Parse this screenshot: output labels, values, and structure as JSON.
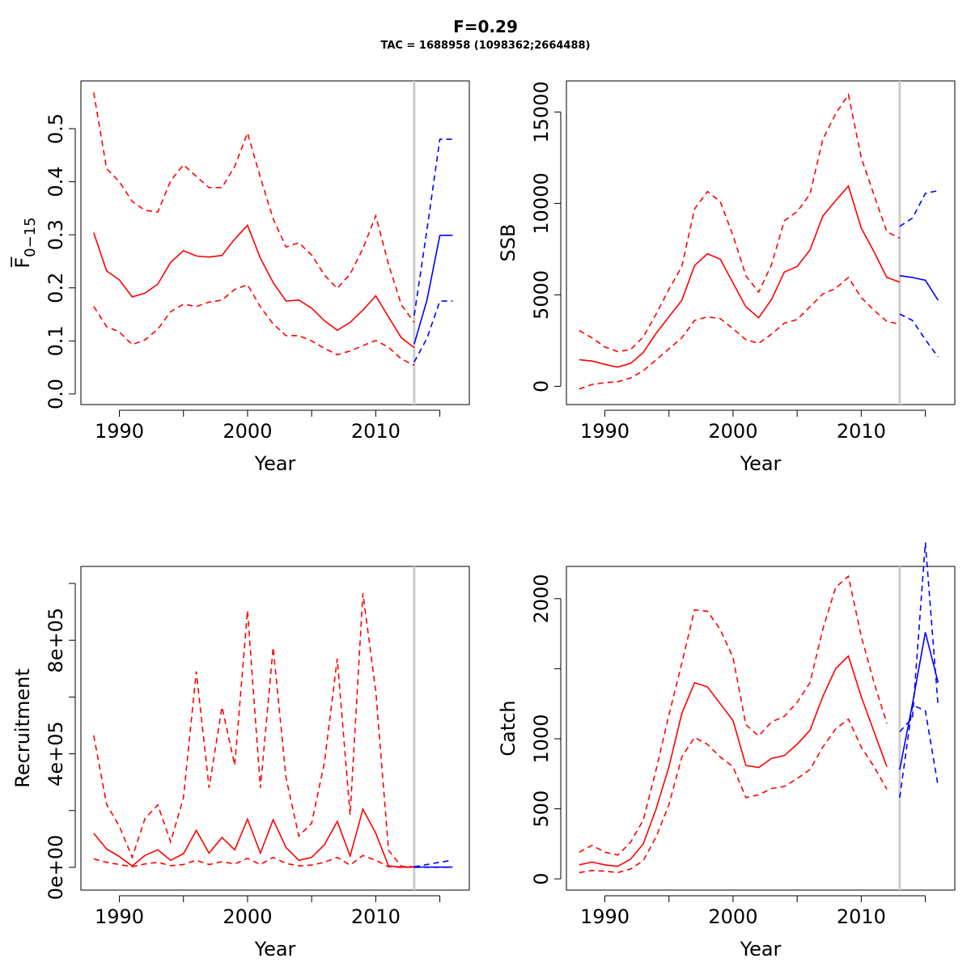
{
  "figure": {
    "title": "F=0.29",
    "subtitle": "TAC = 1688958 (1098362;2664488)"
  },
  "colors": {
    "history": "#ff0000",
    "forecast": "#0000ff",
    "divider": "#cccccc"
  },
  "chart_data": [
    {
      "type": "line",
      "name": "fbar",
      "xlabel": "Year",
      "ylabel": "F̅",
      "ylabel_sub": "0−15",
      "xlim": [
        1987,
        2017.3
      ],
      "ylim": [
        -0.02,
        0.59
      ],
      "xticks": [
        1990,
        1995,
        2000,
        2005,
        2010,
        2015
      ],
      "xtick_labels": [
        "1990",
        "",
        "2000",
        "",
        "2010",
        ""
      ],
      "yticks": [
        0,
        0.1,
        0.2,
        0.3,
        0.4,
        0.5
      ],
      "ytick_labels": [
        "0.0",
        "0.1",
        "0.2",
        "0.3",
        "0.4",
        "0.5"
      ],
      "divider_x": 2013,
      "series": [
        {
          "style": "solid",
          "color": "red",
          "x": [
            1988,
            1989,
            1990,
            1991,
            1992,
            1993,
            1994,
            1995,
            1996,
            1997,
            1998,
            1999,
            2000,
            2001,
            2002,
            2003,
            2004,
            2005,
            2006,
            2007,
            2008,
            2009,
            2010,
            2011,
            2012,
            2013
          ],
          "y": [
            0.304,
            0.232,
            0.215,
            0.183,
            0.19,
            0.207,
            0.248,
            0.27,
            0.26,
            0.258,
            0.261,
            0.292,
            0.318,
            0.256,
            0.21,
            0.175,
            0.177,
            0.162,
            0.138,
            0.12,
            0.135,
            0.158,
            0.185,
            0.145,
            0.106,
            0.087
          ]
        },
        {
          "style": "dashed",
          "color": "red",
          "x": [
            1988,
            1989,
            1990,
            1991,
            1992,
            1993,
            1994,
            1995,
            1996,
            1997,
            1998,
            1999,
            2000,
            2001,
            2002,
            2003,
            2004,
            2005,
            2006,
            2007,
            2008,
            2009,
            2010,
            2011,
            2012,
            2013
          ],
          "y": [
            0.568,
            0.425,
            0.4,
            0.363,
            0.346,
            0.343,
            0.402,
            0.432,
            0.41,
            0.389,
            0.389,
            0.429,
            0.492,
            0.408,
            0.33,
            0.277,
            0.285,
            0.262,
            0.224,
            0.199,
            0.226,
            0.274,
            0.336,
            0.244,
            0.168,
            0.135
          ]
        },
        {
          "style": "dashed",
          "color": "red",
          "x": [
            1988,
            1989,
            1990,
            1991,
            1992,
            1993,
            1994,
            1995,
            1996,
            1997,
            1998,
            1999,
            2000,
            2001,
            2002,
            2003,
            2004,
            2005,
            2006,
            2007,
            2008,
            2009,
            2010,
            2011,
            2012,
            2013
          ],
          "y": [
            0.165,
            0.127,
            0.117,
            0.093,
            0.102,
            0.122,
            0.155,
            0.169,
            0.165,
            0.173,
            0.177,
            0.197,
            0.206,
            0.164,
            0.132,
            0.11,
            0.11,
            0.1,
            0.086,
            0.074,
            0.081,
            0.091,
            0.101,
            0.088,
            0.066,
            0.054
          ]
        },
        {
          "style": "solid",
          "color": "blue",
          "x": [
            2013,
            2014,
            2015,
            2016
          ],
          "y": [
            0.094,
            0.177,
            0.299,
            0.299
          ]
        },
        {
          "style": "dashed",
          "color": "blue",
          "x": [
            2013,
            2014,
            2015,
            2016
          ],
          "y": [
            0.148,
            0.31,
            0.48,
            0.48
          ]
        },
        {
          "style": "dashed",
          "color": "blue",
          "x": [
            2013,
            2014,
            2015,
            2016
          ],
          "y": [
            0.06,
            0.105,
            0.175,
            0.175
          ]
        }
      ]
    },
    {
      "type": "line",
      "name": "ssb",
      "xlabel": "Year",
      "ylabel": "SSB",
      "xlim": [
        1987,
        2017.3
      ],
      "ylim": [
        -1000,
        16700
      ],
      "xticks": [
        1990,
        1995,
        2000,
        2005,
        2010,
        2015
      ],
      "xtick_labels": [
        "1990",
        "",
        "2000",
        "",
        "2010",
        ""
      ],
      "yticks": [
        0,
        5000,
        10000,
        15000
      ],
      "ytick_labels": [
        "0",
        "5000",
        "10000",
        "15000"
      ],
      "divider_x": 2013,
      "series": [
        {
          "style": "solid",
          "color": "red",
          "x": [
            1988,
            1989,
            1990,
            1991,
            1992,
            1993,
            1994,
            1995,
            1996,
            1997,
            1998,
            1999,
            2000,
            2001,
            2002,
            2003,
            2004,
            2005,
            2006,
            2007,
            2008,
            2009,
            2010,
            2011,
            2012,
            2013
          ],
          "y": [
            1450,
            1380,
            1200,
            1050,
            1250,
            1850,
            2900,
            3800,
            4700,
            6600,
            7250,
            6950,
            5650,
            4350,
            3750,
            4750,
            6250,
            6550,
            7450,
            9300,
            10150,
            10950,
            8650,
            7350,
            5950,
            5700
          ]
        },
        {
          "style": "dashed",
          "color": "red",
          "x": [
            1988,
            1989,
            1990,
            1991,
            1992,
            1993,
            1994,
            1995,
            1996,
            1997,
            1998,
            1999,
            2000,
            2001,
            2002,
            2003,
            2004,
            2005,
            2006,
            2007,
            2008,
            2009,
            2010,
            2011,
            2012,
            2013
          ],
          "y": [
            3050,
            2650,
            2150,
            1900,
            2000,
            2700,
            3950,
            5300,
            6550,
            9700,
            10650,
            10100,
            8250,
            6050,
            5150,
            6650,
            9050,
            9550,
            10500,
            13500,
            14900,
            15950,
            12500,
            10450,
            8450,
            8100
          ]
        },
        {
          "style": "dashed",
          "color": "red",
          "x": [
            1988,
            1989,
            1990,
            1991,
            1992,
            1993,
            1994,
            1995,
            1996,
            1997,
            1998,
            1999,
            2000,
            2001,
            2002,
            2003,
            2004,
            2005,
            2006,
            2007,
            2008,
            2009,
            2010,
            2011,
            2012,
            2013
          ],
          "y": [
            -150,
            100,
            200,
            250,
            450,
            850,
            1450,
            2050,
            2650,
            3600,
            3800,
            3700,
            3150,
            2550,
            2350,
            2850,
            3450,
            3650,
            4350,
            5050,
            5350,
            5950,
            4850,
            4150,
            3550,
            3400
          ]
        },
        {
          "style": "solid",
          "color": "blue",
          "x": [
            2013,
            2014,
            2015,
            2016
          ],
          "y": [
            6050,
            5950,
            5800,
            4700
          ]
        },
        {
          "style": "dashed",
          "color": "blue",
          "x": [
            2013,
            2014,
            2015,
            2016
          ],
          "y": [
            8750,
            9200,
            10550,
            10700
          ]
        },
        {
          "style": "dashed",
          "color": "blue",
          "x": [
            2013,
            2014,
            2015,
            2016
          ],
          "y": [
            3950,
            3600,
            2550,
            1600
          ]
        }
      ]
    },
    {
      "type": "line",
      "name": "recruitment",
      "xlabel": "Year",
      "ylabel": "Recruitment",
      "xlim": [
        1987,
        2017.3
      ],
      "ylim": [
        -80000,
        1060000
      ],
      "xticks": [
        1990,
        1995,
        2000,
        2005,
        2010,
        2015
      ],
      "xtick_labels": [
        "1990",
        "",
        "2000",
        "",
        "2010",
        ""
      ],
      "yticks": [
        0,
        200000,
        400000,
        600000,
        800000,
        1000000
      ],
      "ytick_labels": [
        "0e+00",
        "",
        "4e+05",
        "",
        "8e+05",
        ""
      ],
      "divider_x": 2013,
      "series": [
        {
          "style": "solid",
          "color": "red",
          "x": [
            1988,
            1989,
            1990,
            1991,
            1992,
            1993,
            1994,
            1995,
            1996,
            1997,
            1998,
            1999,
            2000,
            2001,
            2002,
            2003,
            2004,
            2005,
            2006,
            2007,
            2008,
            2009,
            2010,
            2011,
            2012,
            2013
          ],
          "y": [
            120000,
            65000,
            38000,
            5000,
            42000,
            62000,
            25000,
            48000,
            130000,
            50000,
            105000,
            62000,
            170000,
            50000,
            168000,
            70000,
            25000,
            35000,
            80000,
            162000,
            40000,
            205000,
            120000,
            5000,
            1000,
            1000
          ]
        },
        {
          "style": "dashed",
          "color": "red",
          "x": [
            1988,
            1989,
            1990,
            1991,
            1992,
            1993,
            1994,
            1995,
            1996,
            1997,
            1998,
            1999,
            2000,
            2001,
            2002,
            2003,
            2004,
            2005,
            2006,
            2007,
            2008,
            2009,
            2010,
            2011,
            2012,
            2013
          ],
          "y": [
            465000,
            222000,
            145000,
            35000,
            172000,
            220000,
            90000,
            245000,
            690000,
            280000,
            565000,
            360000,
            905000,
            280000,
            775000,
            315000,
            110000,
            155000,
            370000,
            735000,
            185000,
            965000,
            620000,
            60000,
            4000,
            2000
          ]
        },
        {
          "style": "dashed",
          "color": "red",
          "x": [
            1988,
            1989,
            1990,
            1991,
            1992,
            1993,
            1994,
            1995,
            1996,
            1997,
            1998,
            1999,
            2000,
            2001,
            2002,
            2003,
            2004,
            2005,
            2006,
            2007,
            2008,
            2009,
            2010,
            2011,
            2012,
            2013
          ],
          "y": [
            30000,
            18000,
            10000,
            2000,
            12000,
            18000,
            6000,
            10000,
            25000,
            10000,
            20000,
            12000,
            32000,
            10000,
            35000,
            14000,
            5000,
            8000,
            18000,
            35000,
            8000,
            42000,
            25000,
            2000,
            500,
            500
          ]
        },
        {
          "style": "solid",
          "color": "blue",
          "x": [
            2013,
            2014,
            2015,
            2016
          ],
          "y": [
            1000,
            1000,
            1000,
            1000
          ]
        },
        {
          "style": "dashed",
          "color": "blue",
          "x": [
            2013,
            2014,
            2015,
            2016
          ],
          "y": [
            2000,
            10000,
            18000,
            25000
          ]
        },
        {
          "style": "dashed",
          "color": "blue",
          "x": [
            2013,
            2014,
            2015,
            2016
          ],
          "y": [
            500,
            500,
            500,
            500
          ]
        }
      ]
    },
    {
      "type": "line",
      "name": "catch",
      "xlabel": "Year",
      "ylabel": "Catch",
      "xlim": [
        1987,
        2017.3
      ],
      "ylim": [
        -80,
        2230
      ],
      "xticks": [
        1990,
        1995,
        2000,
        2005,
        2010,
        2015
      ],
      "xtick_labels": [
        "1990",
        "",
        "2000",
        "",
        "2010",
        ""
      ],
      "yticks": [
        0,
        500,
        1000,
        1500,
        2000
      ],
      "ytick_labels": [
        "0",
        "500",
        "1000",
        "",
        "2000"
      ],
      "divider_x": 2013,
      "series": [
        {
          "style": "solid",
          "color": "red",
          "x": [
            1988,
            1989,
            1990,
            1991,
            1992,
            1993,
            1994,
            1995,
            1996,
            1997,
            1998,
            1999,
            2000,
            2001,
            2002,
            2003,
            2004,
            2005,
            2006,
            2007,
            2008,
            2009,
            2010,
            2011,
            2012
          ],
          "y": [
            100,
            120,
            100,
            90,
            140,
            250,
            500,
            800,
            1180,
            1400,
            1370,
            1250,
            1130,
            810,
            795,
            860,
            880,
            960,
            1060,
            1300,
            1500,
            1590,
            1300,
            1050,
            800
          ]
        },
        {
          "style": "dashed",
          "color": "red",
          "x": [
            1988,
            1989,
            1990,
            1991,
            1992,
            1993,
            1994,
            1995,
            1996,
            1997,
            1998,
            1999,
            2000,
            2001,
            2002,
            2003,
            2004,
            2005,
            2006,
            2007,
            2008,
            2009,
            2010,
            2011,
            2012
          ],
          "y": [
            190,
            240,
            190,
            170,
            260,
            420,
            780,
            1170,
            1540,
            1920,
            1910,
            1780,
            1580,
            1100,
            1020,
            1120,
            1160,
            1260,
            1400,
            1780,
            2080,
            2160,
            1730,
            1400,
            1110
          ]
        },
        {
          "style": "dashed",
          "color": "red",
          "x": [
            1988,
            1989,
            1990,
            1991,
            1992,
            1993,
            1994,
            1995,
            1996,
            1997,
            1998,
            1999,
            2000,
            2001,
            2002,
            2003,
            2004,
            2005,
            2006,
            2007,
            2008,
            2009,
            2010,
            2011,
            2012
          ],
          "y": [
            45,
            60,
            55,
            45,
            70,
            130,
            300,
            530,
            870,
            1010,
            960,
            870,
            800,
            580,
            600,
            645,
            660,
            715,
            780,
            940,
            1070,
            1140,
            940,
            800,
            640
          ]
        },
        {
          "style": "solid",
          "color": "blue",
          "x": [
            2013,
            2014,
            2015,
            2016
          ],
          "y": [
            780,
            1250,
            1760,
            1400
          ]
        },
        {
          "style": "dashed",
          "color": "blue",
          "x": [
            2013,
            2014,
            2015,
            2016
          ],
          "y": [
            1050,
            1150,
            2400,
            1230
          ]
        },
        {
          "style": "dashed",
          "color": "blue",
          "x": [
            2013,
            2014,
            2015,
            2016
          ],
          "y": [
            580,
            1240,
            1200,
            660
          ]
        }
      ]
    }
  ]
}
